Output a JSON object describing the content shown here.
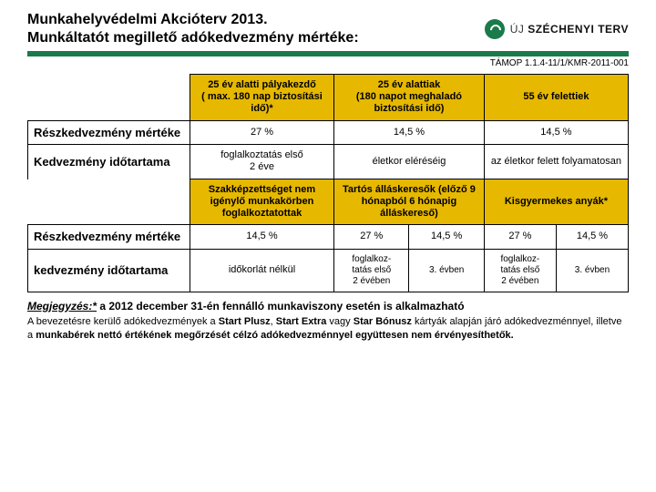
{
  "title_line1": "Munkahelyvédelmi Akcióterv 2013.",
  "title_line2": "Munkáltatót  megillető adókedvezmény mértéke:",
  "logo": {
    "text1": "ÚJ ",
    "text2": "SZÉCHENYI TERV"
  },
  "code": "TÁMOP 1.1.4-11/1/KMR-2011-001",
  "t1": {
    "h1": "25 év alatti pályakezdő\n( max. 180 nap biztosítási idő)*",
    "h2": "25 év alattiak\n(180 napot meghaladó biztosítási idő)",
    "h3": "55 év felettiek",
    "r1_label": "Részkedvezmény mértéke",
    "r1_c1": "27 %",
    "r1_c2": "14,5 %",
    "r1_c3": "14,5 %",
    "r2_label": "Kedvezmény időtartama",
    "r2_c1": "foglalkoztatás első\n2 éve",
    "r2_c2": "életkor eléréséig",
    "r2_c3": "az életkor felett folyamatosan"
  },
  "t2": {
    "h1": "Szakképzettséget nem igénylő munkakörben foglalkoztatottak",
    "h2": "Tartós álláskeresők (előző 9 hónapból 6 hónapig álláskereső)",
    "h3": "Kisgyermekes anyák*",
    "r1_label": "Részkedvezmény mértéke",
    "r1_c1": "14,5 %",
    "r1_c2a": "27 %",
    "r1_c2b": "14,5 %",
    "r1_c3a": "27 %",
    "r1_c3b": "14,5 %",
    "r2_label": "kedvezmény időtartama",
    "r2_c1": "időkorlát nélkül",
    "r2_c2a": "foglalkoz-\ntatás első\n2 évében",
    "r2_c2b": "3. évben",
    "r2_c3a": "foglalkoz-\ntatás első\n2 évében",
    "r2_c3b": "3. évben"
  },
  "footnote": {
    "lead": "Megjegyzés:*",
    "bold": " a 2012 december 31-én fennálló munkaviszony esetén is alkalmazható",
    "small_1": "A bevezetésre kerülő adókedvezmények a ",
    "small_b1": "Start Plusz",
    "small_2": ", ",
    "small_b2": "Start Extra",
    "small_3": " vagy ",
    "small_b3": "Star Bónusz",
    "small_4": " kártyák alapján járó adókedvezménnyel, illetve a ",
    "small_b4": "munkabérek nettó értékének megőrzését célzó adókedvezménnyel együttesen nem érvényesíthetők.",
    "small_end": ""
  }
}
